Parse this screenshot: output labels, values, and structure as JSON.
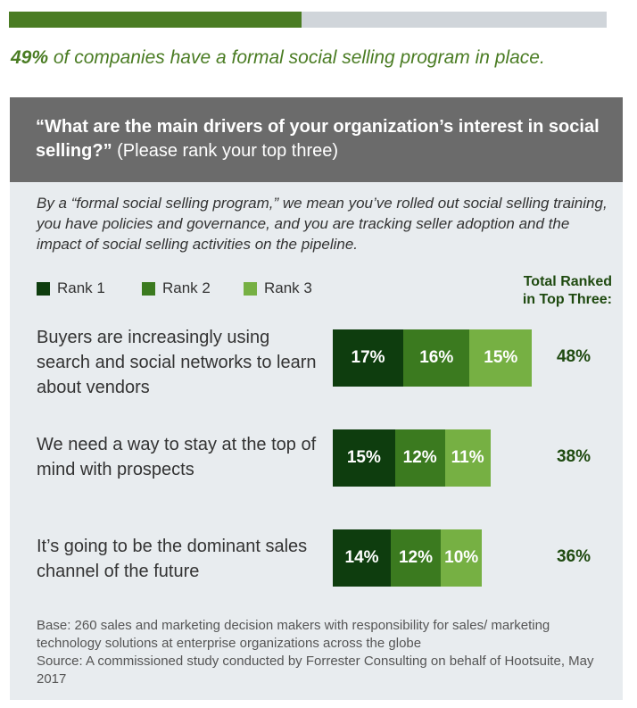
{
  "progress": {
    "fraction": 0.49
  },
  "stat": {
    "number": "49%",
    "text": " of companies have a formal social selling program in place."
  },
  "header": {
    "question": "“What are the main drivers of your organization’s interest in social selling?”",
    "instruction": " (Please rank your top three)"
  },
  "definition": "By a “formal social selling program,” we mean you’ve rolled out social selling training, you have policies and governance, and you are tracking seller adoption and the impact of social selling activities on the pipeline.",
  "colors": {
    "rank1": "#0e3d0e",
    "rank2": "#3b7a1f",
    "rank3": "#76b043",
    "accent": "#4a7c23",
    "header_bg": "#6b6b6b",
    "panel_bg": "#e8ecef"
  },
  "chart_data": {
    "type": "bar",
    "stacked": true,
    "orientation": "horizontal",
    "legend": [
      "Rank 1",
      "Rank 2",
      "Rank 3"
    ],
    "total_header_line1": "Total Ranked",
    "total_header_line2": "in Top Three:",
    "rows": [
      {
        "label": "Buyers are increasingly using search and social networks to learn about vendors",
        "values": [
          17,
          16,
          15
        ],
        "value_labels": [
          "17%",
          "16%",
          "15%"
        ],
        "total": "48%"
      },
      {
        "label": "We need a way to stay at the top of mind with prospects",
        "values": [
          15,
          12,
          11
        ],
        "value_labels": [
          "15%",
          "12%",
          "11%"
        ],
        "total": "38%"
      },
      {
        "label": "It’s going to be the dominant sales channel of the future",
        "values": [
          14,
          12,
          10
        ],
        "value_labels": [
          "14%",
          "12%",
          "10%"
        ],
        "total": "36%"
      }
    ]
  },
  "footnote": {
    "base": "Base: 260 sales and marketing decision makers with responsibility for sales/ marketing technology solutions at enterprise organizations across the globe",
    "source": "Source: A commissioned study conducted by Forrester Consulting on behalf of Hootsuite, May 2017"
  }
}
